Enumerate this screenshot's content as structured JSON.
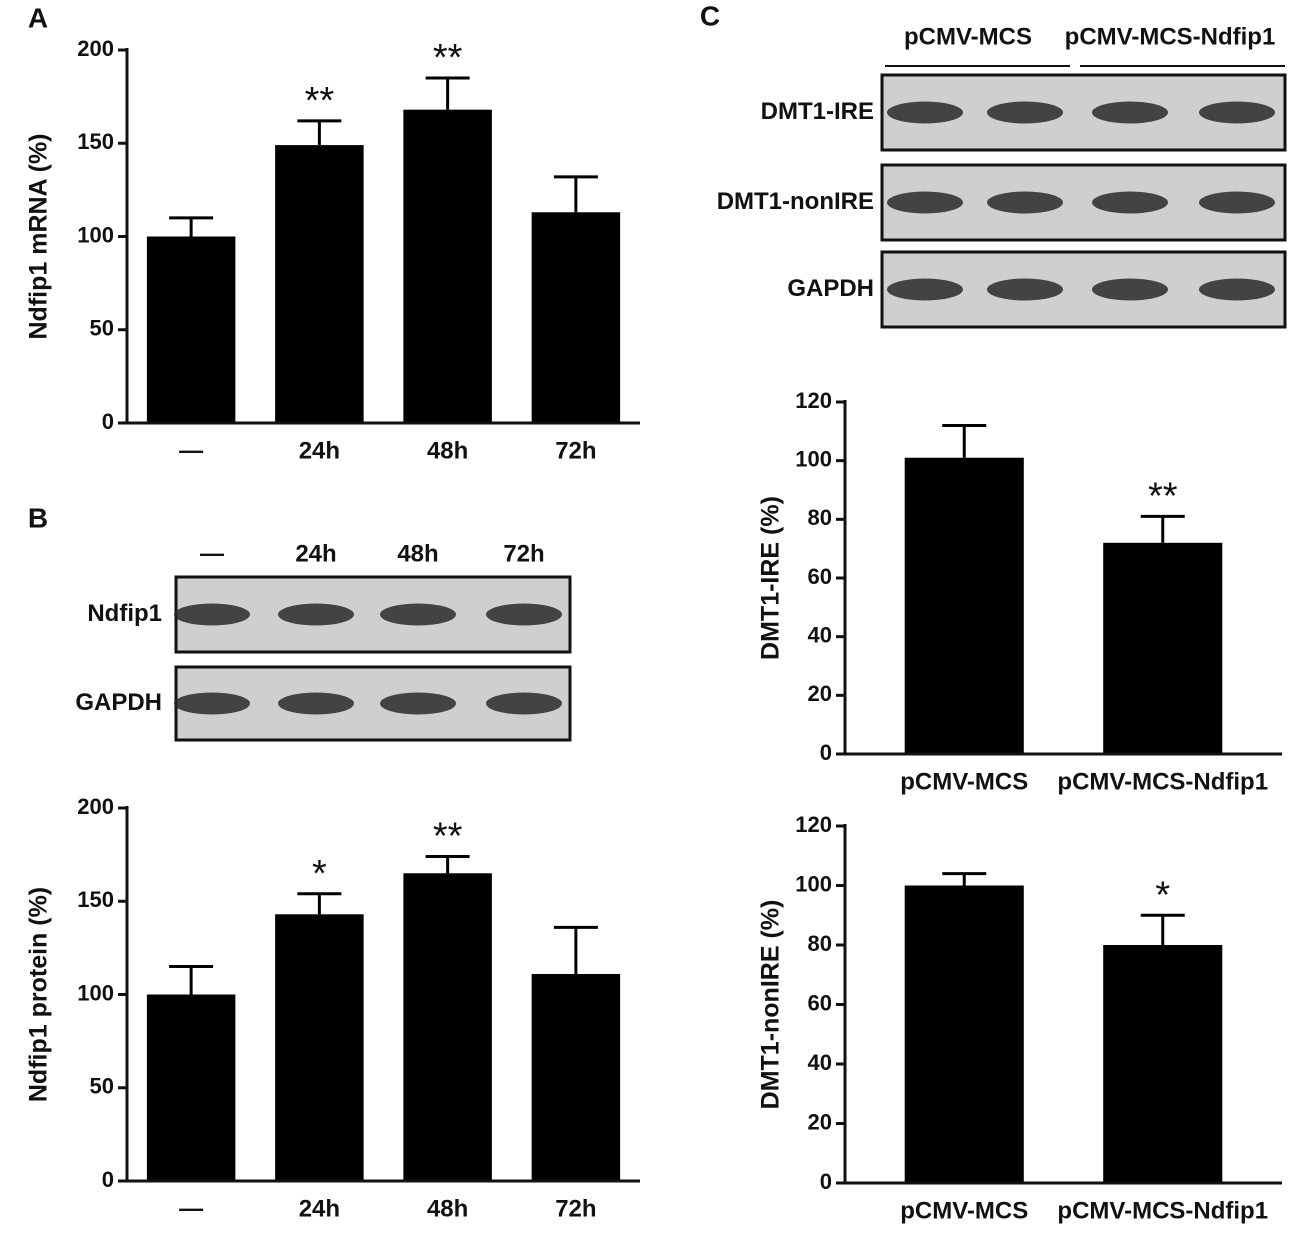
{
  "panel_labels": [
    "A",
    "B",
    "C"
  ],
  "blots": [
    {
      "lanes": [
        "—",
        "24h",
        "48h",
        "72h"
      ],
      "rows": [
        "Ndfip1",
        "GAPDH"
      ]
    },
    {
      "groups": [
        "pCMV-MCS",
        "pCMV-MCS-Ndfip1"
      ],
      "rows": [
        "DMT1-IRE",
        "DMT1-nonIRE",
        "GAPDH"
      ]
    }
  ],
  "chart_data": [
    {
      "type": "bar",
      "ylabel": "Ndfip1 mRNA (%)",
      "categories": [
        "—",
        "24h",
        "48h",
        "72h"
      ],
      "values": [
        100,
        149,
        168,
        113
      ],
      "errors": [
        10,
        13,
        17,
        19
      ],
      "annotations": [
        null,
        "**",
        "**",
        null
      ],
      "color": "#000000",
      "ylim": [
        0,
        200
      ],
      "yticks": [
        0,
        50,
        100,
        150,
        200
      ]
    },
    {
      "type": "bar",
      "ylabel": "Ndfip1 protein (%)",
      "categories": [
        "—",
        "24h",
        "48h",
        "72h"
      ],
      "values": [
        100,
        143,
        165,
        111
      ],
      "errors": [
        15,
        11,
        9,
        25
      ],
      "annotations": [
        null,
        "*",
        "**",
        null
      ],
      "color": "#000000",
      "ylim": [
        0,
        200
      ],
      "yticks": [
        0,
        50,
        100,
        150,
        200
      ]
    },
    {
      "type": "bar",
      "ylabel": "DMT1-IRE (%)",
      "categories": [
        "pCMV-MCS",
        "pCMV-MCS-Ndfip1"
      ],
      "values": [
        101,
        72
      ],
      "errors": [
        11,
        9
      ],
      "annotations": [
        null,
        "**"
      ],
      "color": "#000000",
      "ylim": [
        0,
        120
      ],
      "yticks": [
        0,
        20,
        40,
        60,
        80,
        100,
        120
      ]
    },
    {
      "type": "bar",
      "ylabel": "DMT1-nonIRE (%)",
      "categories": [
        "pCMV-MCS",
        "pCMV-MCS-Ndfip1"
      ],
      "values": [
        100,
        80
      ],
      "errors": [
        4,
        10
      ],
      "annotations": [
        null,
        "*"
      ],
      "color": "#000000",
      "ylim": [
        0,
        120
      ],
      "yticks": [
        0,
        20,
        40,
        60,
        80,
        100,
        120
      ]
    }
  ]
}
